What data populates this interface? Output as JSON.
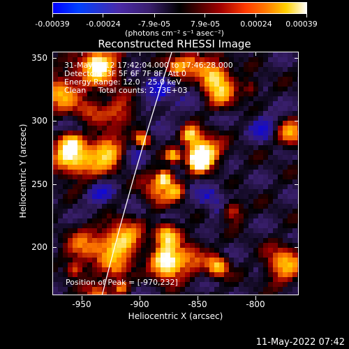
{
  "colorbar": {
    "ticks": [
      "-0.00039",
      "-0.00024",
      "-7.9e-05",
      "7.9e-05",
      "0.00024",
      "0.00039"
    ],
    "units": "(photons cm⁻² s⁻¹ asec⁻²)"
  },
  "chart_data": {
    "type": "heatmap",
    "title": "Reconstructed RHESSI Image",
    "xlabel": "Heliocentric X (arcsec)",
    "ylabel": "Heliocentric Y (arcsec)",
    "xlim": [
      -970,
      -770
    ],
    "ylim": [
      160,
      355
    ],
    "x_ticks": [
      "-950",
      "-900",
      "-850",
      "-800"
    ],
    "y_ticks": [
      "200",
      "250",
      "300",
      "350"
    ],
    "value_range": [
      -0.00039,
      0.00039
    ],
    "annotations": [
      "31-May-2012 17:42:04.000 to 17:46:28.000",
      "Detectors: 3F 5F 6F 7F 8F, Att 0",
      "Energy Range: 12.0 - 25.0 keV",
      "Clean     Total counts: 2.73E+03"
    ],
    "peak_text": "Position of Peak = [-970,232]",
    "colormap": [
      "#0000ff",
      "#3a1f6e",
      "#000000",
      "#a10000",
      "#ff7a00",
      "#ffd000",
      "#ffffff"
    ]
  },
  "footer": {
    "timestamp": "11-May-2022 07:42"
  }
}
